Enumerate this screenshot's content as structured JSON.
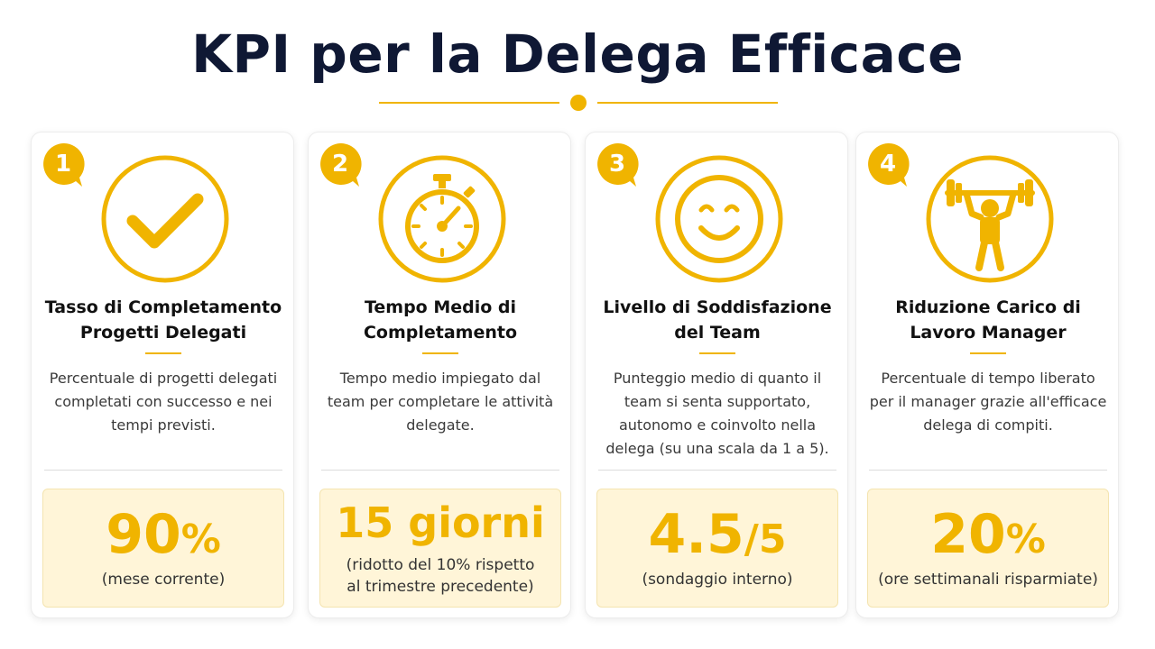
{
  "page": {
    "title": "KPI per la Delega Efficace",
    "accent_color": "#f0b400"
  },
  "cards": [
    {
      "number": "1",
      "icon": "checkmark-icon",
      "title": "Tasso di Completamento\nProgetti Delegati",
      "description": "Percentuale di progetti delegati completati con successo e nei tempi previsti.",
      "value_main": "90",
      "value_suffix": "%",
      "value_note": "(mese corrente)"
    },
    {
      "number": "2",
      "icon": "stopwatch-icon",
      "title": "Tempo Medio di\nCompletamento",
      "description": "Tempo medio impiegato dal team per completare le attività delegate.",
      "value_main": "15 giorni",
      "value_suffix": "",
      "value_note": "(ridotto del 10% rispetto\nal trimestre precedente)"
    },
    {
      "number": "3",
      "icon": "smiley-face-icon",
      "title": "Livello di Soddisfazione\ndel Team",
      "description": "Punteggio medio di quanto il team si senta supportato, autonomo e coinvolto nella delega (su una scala da 1 a 5).",
      "value_main": "4.5",
      "value_suffix": "/5",
      "value_note": "(sondaggio interno)"
    },
    {
      "number": "4",
      "icon": "weightlifter-icon",
      "title": "Riduzione Carico di\nLavoro Manager",
      "description": "Percentuale di tempo liberato per il manager grazie all'efficace delega di compiti.",
      "value_main": "20",
      "value_suffix": "%",
      "value_note": "(ore settimanali risparmiate)"
    }
  ]
}
